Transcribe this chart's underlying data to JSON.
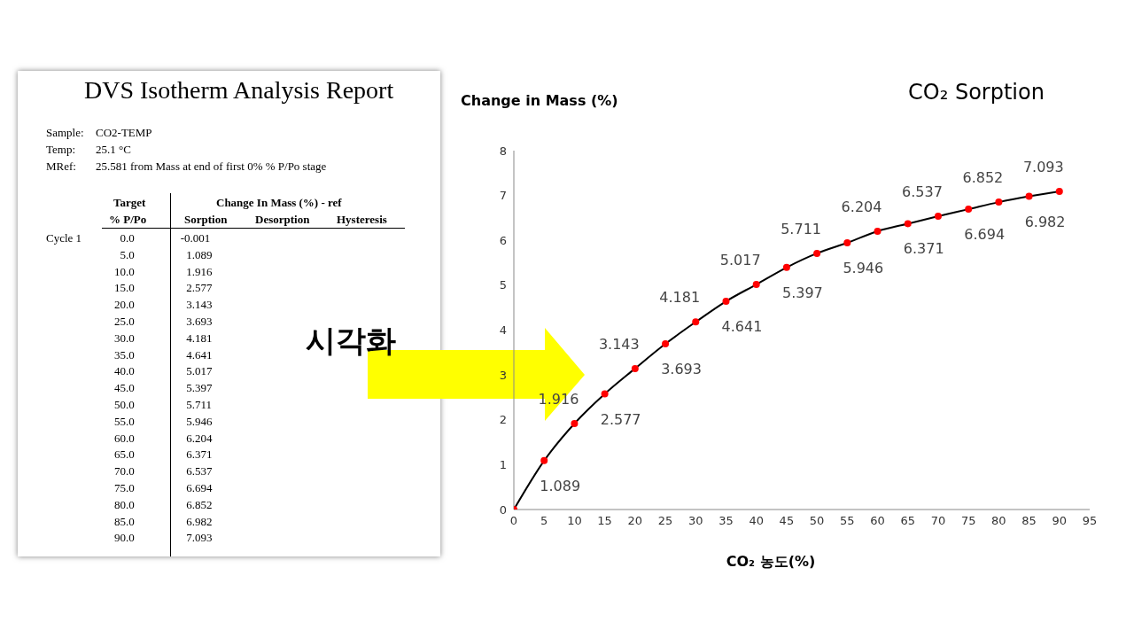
{
  "chart_data": [
    {
      "type": "other",
      "title": "DVS Isotherm Analysis Report",
      "annotations": [
        "Sample:",
        "CO2-TEMP",
        "Temp:",
        "25.1 °C",
        "MRef:",
        "25.581 from Mass at end of first 0% % P/Po stage",
        "Target",
        "% P/Po",
        "Change In Mass (%) - ref",
        "Sorption",
        "Desorption",
        "Hysteresis",
        "Cycle 1",
        "0.0",
        "5.0",
        "10.0",
        "15.0",
        "20.0",
        "25.0",
        "30.0",
        "35.0",
        "40.0",
        "45.0",
        "50.0",
        "55.0",
        "60.0",
        "65.0",
        "70.0",
        "75.0",
        "80.0",
        "85.0",
        "90.0",
        "-0.001",
        "1.089",
        "1.916",
        "2.577",
        "3.143",
        "3.693",
        "4.181",
        "4.641",
        "5.017",
        "5.397",
        "5.711",
        "5.946",
        "6.204",
        "6.371",
        "6.537",
        "6.694",
        "6.852",
        "6.982",
        "7.093"
      ]
    },
    {
      "type": "line",
      "title": "CO₂  Sorption",
      "xlabel": "CO₂ 농도(%)",
      "ylabel": "Change in Mass (%)",
      "annotations": [
        "시각화"
      ],
      "x": [
        0,
        5,
        10,
        15,
        20,
        25,
        30,
        35,
        40,
        45,
        50,
        55,
        60,
        65,
        70,
        75,
        80,
        85,
        90
      ],
      "series": [
        {
          "color": "#000000",
          "colors": [
            "#ff0000",
            "#ff0000",
            "#ff0000",
            "#ff0000",
            "#ff0000",
            "#ff0000",
            "#ff0000",
            "#ff0000",
            "#ff0000",
            "#ff0000",
            "#ff0000",
            "#ff0000",
            "#ff0000",
            "#ff0000",
            "#ff0000",
            "#ff0000",
            "#ff0000",
            "#ff0000",
            "#ff0000"
          ],
          "values": [
            0,
            1.089,
            1.916,
            2.577,
            3.143,
            3.693,
            4.181,
            4.641,
            5.017,
            5.397,
            5.711,
            5.946,
            6.204,
            6.371,
            6.537,
            6.694,
            6.852,
            6.982,
            7.093
          ],
          "value_labels": [
            null,
            "1.089",
            "1.916",
            "2.577",
            "3.143",
            "3.693",
            "4.181",
            "4.641",
            "5.017",
            "5.397",
            "5.711",
            "5.946",
            "6.204",
            "6.371",
            "6.537",
            "6.694",
            "6.852",
            "6.982",
            "7.093"
          ]
        }
      ],
      "xlim": [
        0,
        95
      ],
      "xticks": [
        0,
        5,
        10,
        15,
        20,
        25,
        30,
        35,
        40,
        45,
        50,
        55,
        60,
        65,
        70,
        75,
        80,
        85,
        90,
        95
      ],
      "ylim": [
        0,
        8
      ],
      "yticks": [
        0,
        1,
        2,
        3,
        4,
        5,
        6,
        7,
        8
      ],
      "grid": false,
      "legend": false,
      "marker": "circle",
      "line_style": "solid"
    }
  ]
}
